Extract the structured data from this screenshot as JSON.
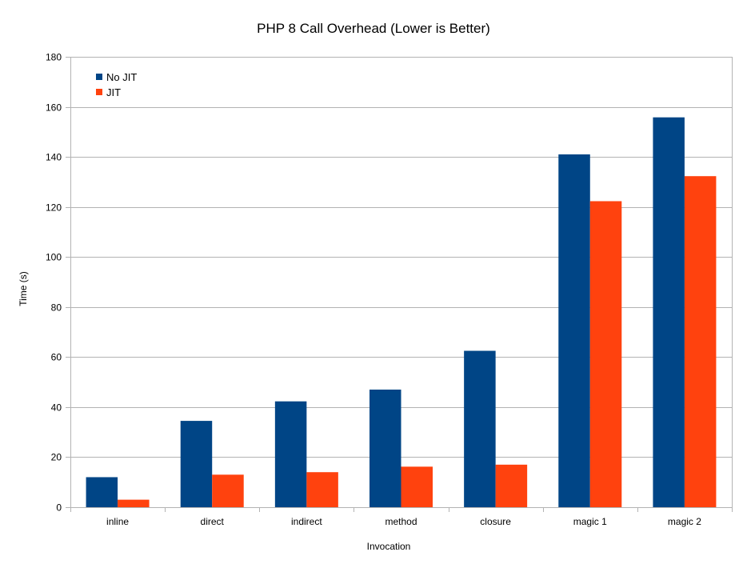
{
  "chart_data": {
    "type": "bar",
    "title": "PHP 8 Call Overhead (Lower is Better)",
    "xlabel": "Invocation",
    "ylabel": "Time (s)",
    "ylim": [
      0,
      180
    ],
    "yticks": [
      0,
      20,
      40,
      60,
      80,
      100,
      120,
      140,
      160,
      180
    ],
    "grid": true,
    "legend_position": "top-left",
    "categories": [
      "inline",
      "direct",
      "indirect",
      "method",
      "closure",
      "magic 1",
      "magic 2"
    ],
    "series": [
      {
        "name": "No JIT",
        "color": "#004586",
        "values": [
          12,
          34.5,
          42.3,
          47,
          62.5,
          141,
          155.8
        ]
      },
      {
        "name": "JIT",
        "color": "#ff420e",
        "values": [
          3,
          13,
          14,
          16.2,
          17,
          122.3,
          132.3
        ]
      }
    ]
  }
}
